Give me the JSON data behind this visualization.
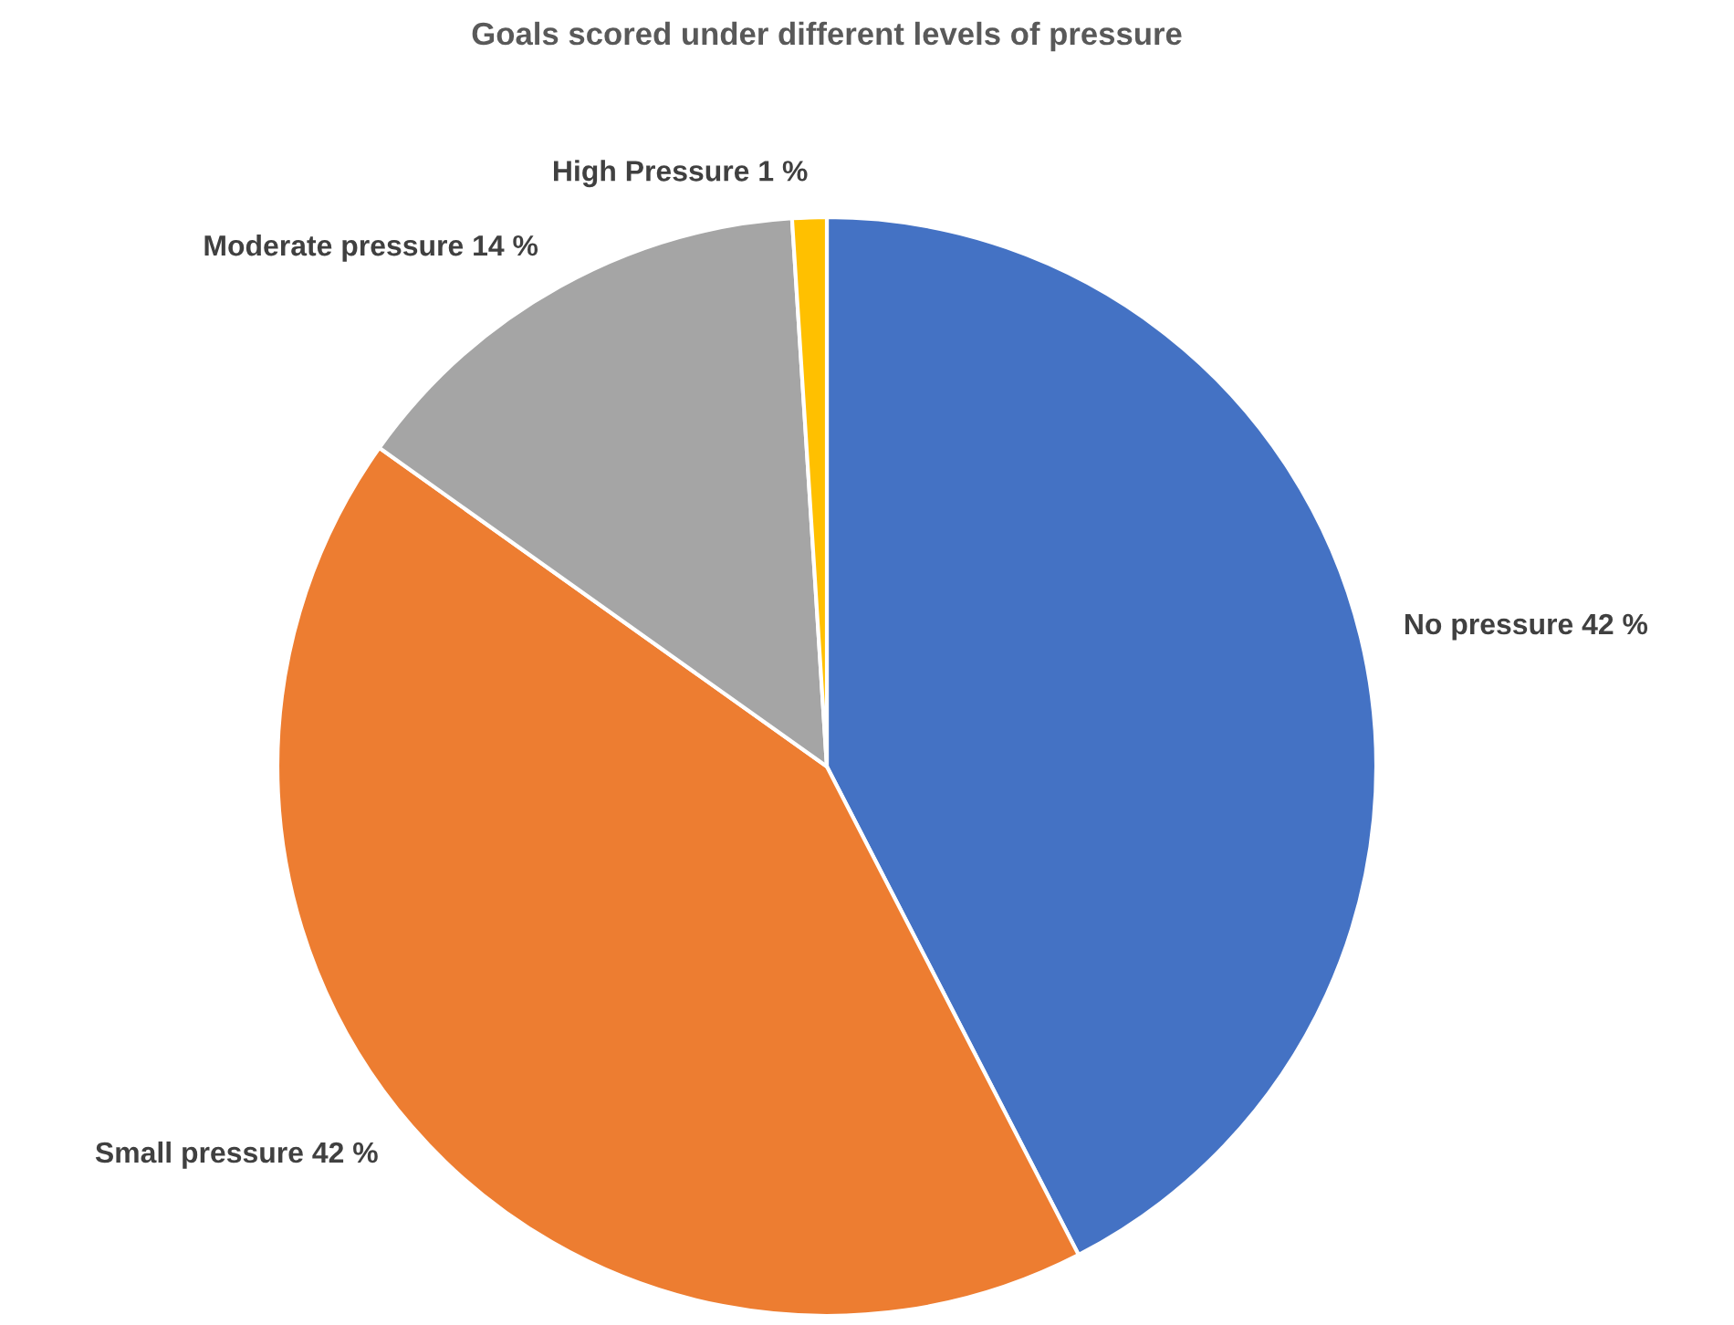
{
  "chart_data": {
    "type": "pie",
    "title": "Goals scored under different levels of pressure",
    "categories": [
      "No pressure",
      "Small pressure",
      "Moderate pressure",
      "High Pressure"
    ],
    "values": [
      42,
      42,
      14,
      1
    ],
    "value_labels": [
      "42 %",
      "42 %",
      "14 %",
      "1 %"
    ],
    "colors": [
      "#4472c4",
      "#ed7d31",
      "#a5a5a5",
      "#ffc000"
    ],
    "legend": false
  }
}
